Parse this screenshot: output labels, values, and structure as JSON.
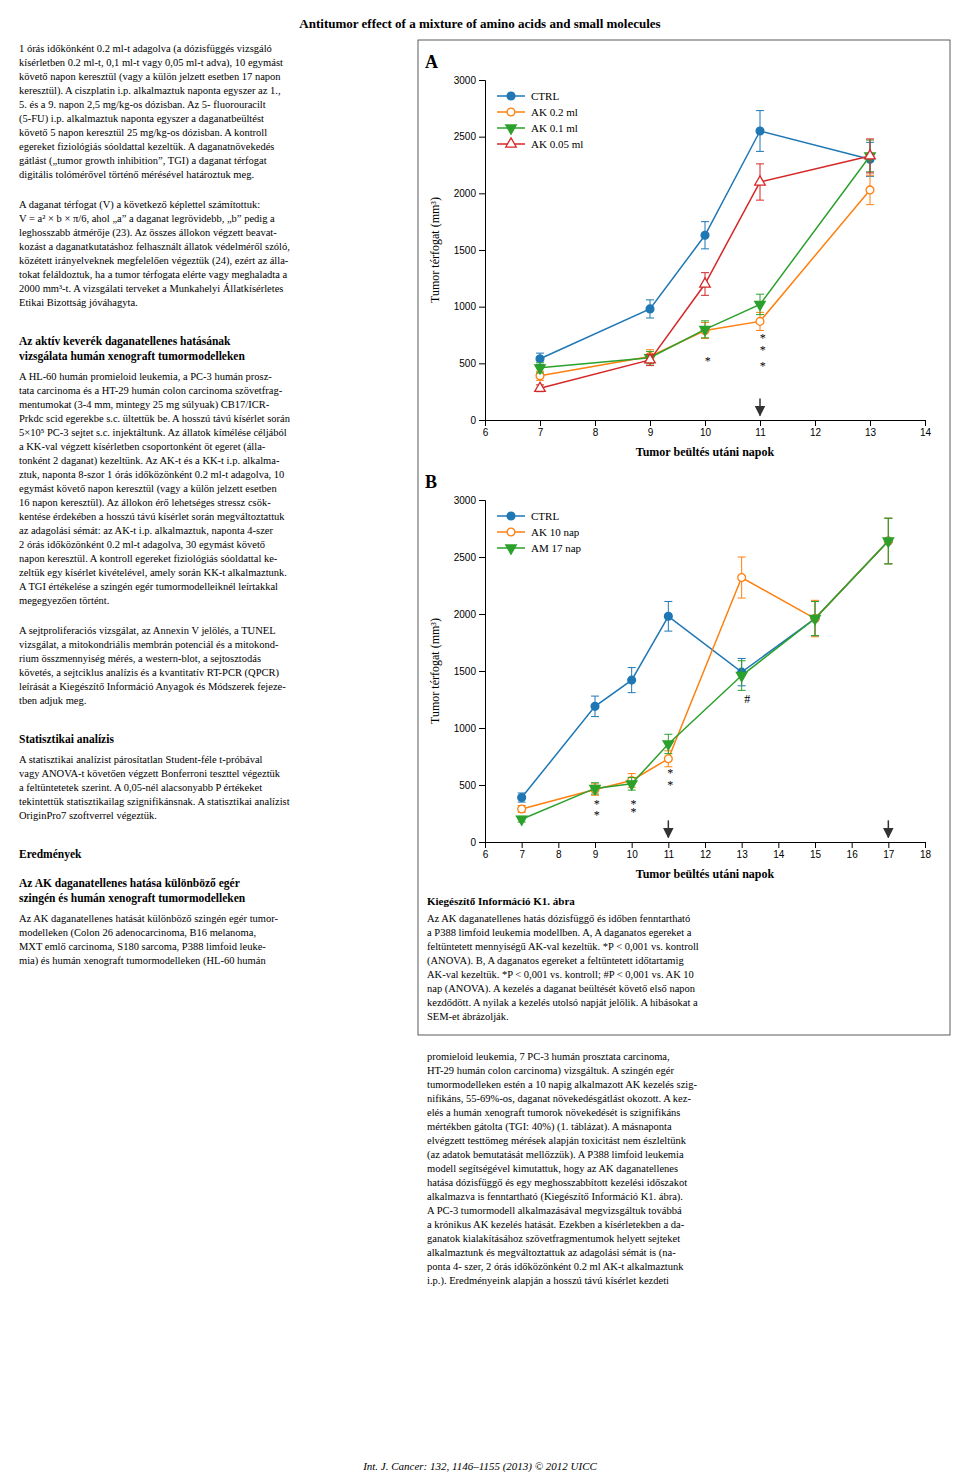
{
  "page_title": "Antitumor effect of a mixture of amino acids and small molecules",
  "chart_data": [
    {
      "type": "line",
      "title": "A",
      "xlabel": "Tumor beültés utáni napok",
      "ylabel": "Tumor térfogat (mm³)",
      "xlim": [
        6,
        14
      ],
      "ylim": [
        0,
        3000
      ],
      "xticks": [
        6,
        7,
        8,
        9,
        10,
        11,
        12,
        13,
        14
      ],
      "yticks": [
        0,
        500,
        1000,
        1500,
        2000,
        2500,
        3000
      ],
      "grid": false,
      "legend": "upper left",
      "x": [
        7,
        9,
        10,
        11,
        13
      ],
      "series": [
        {
          "name": "CTRL",
          "marker": "circle",
          "values": [
            540,
            980,
            1630,
            2550,
            2300
          ],
          "errors": [
            50,
            80,
            120,
            180,
            150
          ]
        },
        {
          "name": "AK 0.2 ml",
          "marker": "circle-open",
          "values": [
            390,
            560,
            790,
            870,
            2030
          ],
          "errors": [
            40,
            60,
            70,
            80,
            130
          ]
        },
        {
          "name": "AK 0.1 ml",
          "marker": "triangle-down",
          "values": [
            460,
            550,
            800,
            1020,
            2330
          ],
          "errors": [
            45,
            55,
            75,
            90,
            140
          ]
        },
        {
          "name": "AK 0.05 ml",
          "marker": "triangle-up-open",
          "values": [
            280,
            530,
            1200,
            2100,
            2330
          ],
          "errors": [
            30,
            50,
            100,
            160,
            150
          ]
        }
      ],
      "annotations": [
        {
          "text": "*",
          "x": 10.05,
          "y": 480
        },
        {
          "text": "*",
          "x": 11.05,
          "y": 570
        },
        {
          "text": "*",
          "x": 11.05,
          "y": 680
        },
        {
          "text": "*",
          "x": 11.05,
          "y": 430
        }
      ],
      "arrows": [
        {
          "x": 11,
          "from": 190,
          "to": 40
        }
      ]
    },
    {
      "type": "line",
      "title": "B",
      "xlabel": "Tumor beültés utáni napok",
      "ylabel": "Tumor térfogat (mm³)",
      "xlim": [
        6,
        18
      ],
      "ylim": [
        0,
        3000
      ],
      "xticks": [
        6,
        7,
        8,
        9,
        10,
        11,
        12,
        13,
        14,
        15,
        16,
        17,
        18
      ],
      "yticks": [
        0,
        500,
        1000,
        1500,
        2000,
        2500,
        3000
      ],
      "grid": false,
      "legend": "upper left",
      "x": [
        7,
        9,
        10,
        11,
        13,
        15,
        17
      ],
      "series": [
        {
          "name": "CTRL",
          "marker": "circle",
          "values": [
            390,
            1190,
            1420,
            1980,
            1490,
            1960,
            2640
          ],
          "errors": [
            40,
            90,
            110,
            130,
            120,
            150,
            200
          ]
        },
        {
          "name": "AK 10 nap",
          "marker": "circle-open",
          "values": [
            290,
            460,
            540,
            730,
            2320,
            1960,
            2640
          ],
          "errors": [
            30,
            50,
            60,
            70,
            180,
            160,
            200
          ]
        },
        {
          "name": "AM 17 nap",
          "marker": "triangle-down",
          "values": [
            200,
            470,
            510,
            860,
            1460,
            1960,
            2640
          ],
          "errors": [
            25,
            50,
            55,
            85,
            130,
            150,
            200
          ]
        }
      ],
      "annotations": [
        {
          "text": "*",
          "x": 9.05,
          "y": 195
        },
        {
          "text": "*",
          "x": 9.05,
          "y": 290
        },
        {
          "text": "*",
          "x": 10.05,
          "y": 290
        },
        {
          "text": "*",
          "x": 10.05,
          "y": 215
        },
        {
          "text": "*",
          "x": 11.05,
          "y": 565
        },
        {
          "text": "*",
          "x": 11.05,
          "y": 455
        },
        {
          "text": "#",
          "x": 13.15,
          "y": 1210
        }
      ],
      "arrows": [
        {
          "x": 11,
          "from": 190,
          "to": 40
        },
        {
          "x": 17,
          "from": 190,
          "to": 40
        }
      ]
    }
  ],
  "caption": {
    "title": "Kiegészítő Információ K1. ábra",
    "lines": [
      "Az AK daganatellenes hatás dózisfüggő és időben fenntartható",
      "a P388 limfoid leukemia modellben. A, A daganatos egereket a",
      "feltüntetett mennyiségű AK-val kezeltük. *P < 0,001 vs. kontroll",
      "(ANOVA). B, A daganatos egereket a feltüntetett időtartamig",
      "AK-val kezeltük. *P < 0,001 vs. kontroll; #P < 0,001 vs. AK 10",
      "nap (ANOVA). A kezelés a daganat beültését követő első napon",
      "kezdődött. A nyilak a kezelés utolsó napját jelölik. A hibásokat a",
      "SEM-et ábrázolják."
    ]
  },
  "right_column": [
    {
      "paragraph": [
        "promieloid leukemia, 7 PC-3 humán prosztata carcinoma,",
        "HT-29 humán colon carcinoma) vizsgáltuk. A szingén egér",
        "tumormodelleken estén a 10 napig alkalmazott AK kezelés szig-",
        "nifikáns, 55-69%-os, daganat növekedésgátlást okozott. A kez-",
        "elés a humán xenograft tumorok növekedését is szignifikáns",
        "mértékben gátolta (TGI: 40%) (1. táblázat). A másnaponta",
        "elvégzett testtömeg mérések alapján toxicitást nem észleltünk",
        "(az adatok bemutatását mellőzzük). A P388 limfoid leukemia",
        "modell segítségével kimutattuk, hogy az AK daganatellenes",
        "hatása dózisfüggő és egy meghosszabbított kezelési időszakot",
        "alkalmazva is fenntartható (Kiegészítő Információ K1. ábra).",
        "A PC-3 tumormodell alkalmazásával megvizsgáltuk továbbá",
        "a krónikus AK kezelés hatását. Ezekben a kísérletekben a da-",
        "ganatok kialakításához szövetfragmentumok helyett sejteket",
        "alkalmaztunk és megváltoztattuk az adagolási sémát is (na-",
        "ponta 4- szer, 2 órás időközönként 0.2 ml AK-t alkalmaztunk",
        "i.p.). Eredményeink alapján a hosszú távú kísérlet kezdeti"
      ]
    }
  ],
  "left_column": [
    {
      "paragraph": [
        "1 órás időkönként 0.2 ml-t adagolva (a dózisfüggés vizsgáló",
        "kísérletben 0.2 ml-t, 0,1 ml-t vagy 0,05 ml-t adva), 10 egymást",
        "követő napon keresztül (vagy a külön jelzett esetben 17 napon",
        "keresztül). A ciszplatin i.p. alkalmaztuk naponta egyszer az 1.,",
        "5. és a 9. napon 2,5 mg/kg-os dózisban. Az 5- fluorouracilt",
        "(5-FU) i.p. alkalmaztuk naponta egyszer a daganatbeültést",
        "követő 5 napon keresztül 25 mg/kg-os dózisban. A kontroll",
        "egereket fiziológiás sóoldattal kezeltük. A daganatnövekedés",
        "gátlást („tumor growth inhibition”, TGI) a daganat térfogat",
        "digitális tolómérővel történő mérésével határoztuk meg."
      ]
    },
    {
      "paragraph": [
        "A daganat térfogat (V) a következő képlettel számítottuk:",
        "V = a² × b × π/6, ahol „a” a daganat legrövidebb, „b” pedig a",
        "leghosszabb átmérője (23). Az összes állokon végzett beavat-",
        "kozást a daganatkutatáshoz felhasznált állatok védelméről szóló,",
        "közétett irányelveknek megfelelően végeztük (24), ezért az álla-",
        "tokat feláldoztuk, ha a tumor térfogata elérte vagy meghaladta a",
        "2000 mm³-t. A vizsgálati terveket a Munkahelyi Állatkísérletes",
        "Etikai Bizottság jóváhagyta."
      ]
    },
    {
      "heading": [
        "Az aktív keverék daganatellenes hatásának",
        "vizsgálata humán xenograft tumormodelleken"
      ]
    },
    {
      "paragraph": [
        "A HL-60 humán promieloid leukemia, a PC-3 humán prosz-",
        "tata carcinoma és a HT-29 humán colon carcinoma szövetfrag-",
        "mentumokat (3-4 mm, mintegy 25 mg súlyuak) CB17/ICR-",
        "Prkdc scid egerekbe s.c. ültettük be. A hosszú távú kísérlet során",
        "5×10⁵ PC-3 sejtet s.c. injektáltunk. Az állatok kímélése céljából",
        "a KK-val végzett kísérletben csoportonként öt egeret (álla-",
        "tonként 2 daganat) kezeltünk. Az AK-t és a KK-t i.p. alkalma-",
        "ztuk, naponta 8-szor 1 órás időközönként 0.2 ml-t adagolva, 10",
        "egymást követő napon keresztül (vagy a külön jelzett esetben",
        "16 napon keresztül). Az állokon érő lehetséges stressz csök-",
        "kentése érdekében a hosszú távú kísérlet során megváltoztattuk",
        "az adagolási sémát: az AK-t i.p. alkalmaztuk, naponta 4-szer",
        "2 órás időközönként 0.2 ml-t adagolva, 30 egymást követő",
        "napon keresztül. A kontroll egereket fiziológiás sóoldattal ke-",
        "zeltük egy kísérlet kivételével, amely során KK-t alkalmaztunk.",
        "A TGI értékelése a szingén egér tumormodelleiknél leírtakkal",
        "megegyezően történt."
      ]
    },
    {
      "paragraph": [
        "A sejtproliferaciós vizsgálat, az Annexin V jelölés, a TUNEL",
        "vizsgálat, a mitokondriális membrán potenciál és a mitokond-",
        "rium összmennyiség mérés, a western-blot, a sejtosztodás",
        "követés, a sejtciklus analízis és a kvantitatív RT-PCR (QPCR)",
        "leírását a Kiegészítő Információ Anyagok és Módszerek fejeze-",
        "tben adjuk meg."
      ]
    },
    {
      "heading": [
        "Statisztikai analízis"
      ]
    },
    {
      "paragraph": [
        "A statisztikai analízist párosítatlan Student-féle t-próbával",
        "vagy ANOVA-t követően végzett Bonferroni teszttel végeztük",
        "a feltüntetetek szerint. A 0,05-nél alacsonyabb P értékeket",
        "tekintettük statisztikailag szignifikánsnak. A statisztikai analízist",
        "OriginPro7 szoftverrel végeztük."
      ]
    },
    {
      "heading": [
        "Eredmények"
      ]
    },
    {
      "heading": [
        "Az AK daganatellenes hatása különböző egér",
        "szingén és humán xenograft tumormodelleken"
      ]
    },
    {
      "paragraph": [
        "Az AK daganatellenes hatását különböző szingén egér tumor-",
        "modelleken (Colon 26 adenocarcinoma, B16 melanoma,",
        "MXT emlő carcinoma, S180 sarcoma, P388 limfoid leuke-",
        "mia) és humán xenograft tumormodelleken (HL-60 humán"
      ]
    }
  ],
  "footer": "Int. J. Cancer: 132, 1146–1155 (2013) © 2012 UICC"
}
